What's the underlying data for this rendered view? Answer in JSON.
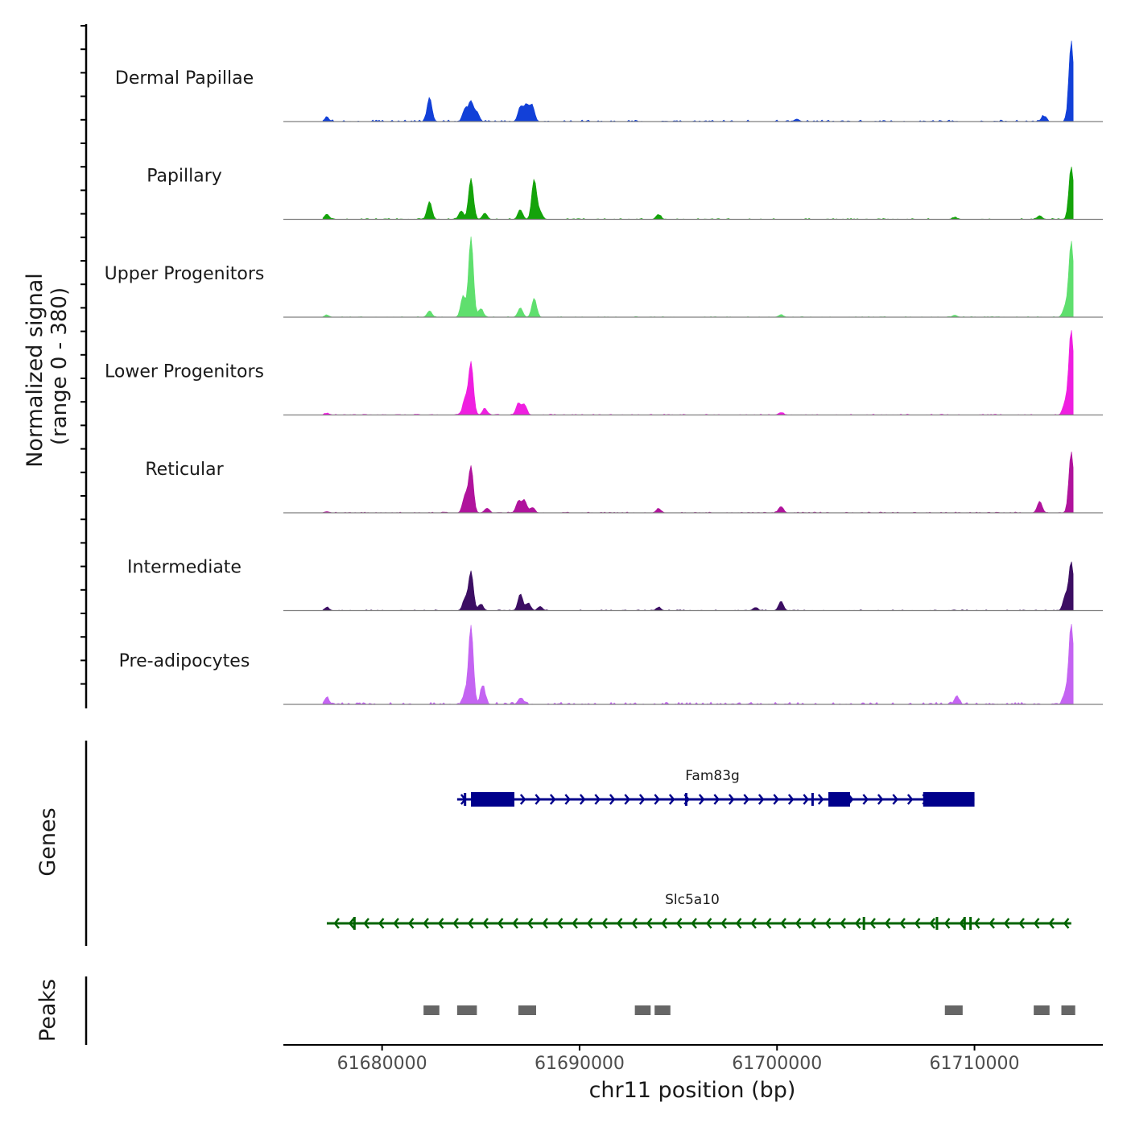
{
  "chart_data": {
    "type": "area",
    "title": "",
    "ylabel_line1": "Normalized signal",
    "ylabel_line2": "(range 0 - 380)",
    "ylim": [
      0,
      380
    ],
    "xlabel": "chr11 position (bp)",
    "xlim": [
      61675000,
      61716500
    ],
    "xticks": [
      61680000,
      61690000,
      61700000,
      61710000
    ],
    "xtick_labels": [
      "61680000",
      "61690000",
      "61700000",
      "61710000"
    ],
    "baseline_color": "#7f7f7f",
    "tracks": [
      {
        "name": "Dermal Papillae",
        "color": "#1240d8",
        "peaks": [
          [
            61677200,
            18
          ],
          [
            61682400,
            115
          ],
          [
            61684200,
            60
          ],
          [
            61684500,
            95
          ],
          [
            61684800,
            45
          ],
          [
            61687000,
            70
          ],
          [
            61687300,
            80
          ],
          [
            61687600,
            75
          ],
          [
            61701000,
            12
          ],
          [
            61713500,
            25
          ],
          [
            61714900,
            380
          ]
        ],
        "noise": 10
      },
      {
        "name": "Papillary",
        "color": "#14a30a",
        "peaks": [
          [
            61677200,
            25
          ],
          [
            61682400,
            85
          ],
          [
            61684000,
            40
          ],
          [
            61684500,
            195
          ],
          [
            61685200,
            30
          ],
          [
            61687000,
            45
          ],
          [
            61687700,
            190
          ],
          [
            61688000,
            35
          ],
          [
            61694000,
            22
          ],
          [
            61709000,
            10
          ],
          [
            61713300,
            18
          ],
          [
            61714900,
            250
          ]
        ],
        "noise": 6
      },
      {
        "name": "Upper Progenitors",
        "color": "#5fdf6e",
        "peaks": [
          [
            61677200,
            10
          ],
          [
            61682400,
            30
          ],
          [
            61684100,
            100
          ],
          [
            61684500,
            380
          ],
          [
            61685000,
            40
          ],
          [
            61687000,
            45
          ],
          [
            61687700,
            90
          ],
          [
            61700200,
            12
          ],
          [
            61709000,
            10
          ],
          [
            61714600,
            50
          ],
          [
            61714900,
            360
          ]
        ],
        "noise": 4
      },
      {
        "name": "Lower Progenitors",
        "color": "#ef1fe0",
        "peaks": [
          [
            61677200,
            8
          ],
          [
            61684200,
            75
          ],
          [
            61684500,
            250
          ],
          [
            61685200,
            30
          ],
          [
            61686900,
            55
          ],
          [
            61687200,
            50
          ],
          [
            61700200,
            12
          ],
          [
            61714600,
            60
          ],
          [
            61714900,
            410
          ]
        ],
        "noise": 5
      },
      {
        "name": "Reticular",
        "color": "#b0139c",
        "peaks": [
          [
            61677200,
            6
          ],
          [
            61684200,
            80
          ],
          [
            61684500,
            220
          ],
          [
            61685300,
            20
          ],
          [
            61686900,
            55
          ],
          [
            61687200,
            60
          ],
          [
            61687600,
            25
          ],
          [
            61694000,
            20
          ],
          [
            61700200,
            30
          ],
          [
            61713300,
            55
          ],
          [
            61714900,
            290
          ]
        ],
        "noise": 5
      },
      {
        "name": "Intermediate",
        "color": "#3c0e63",
        "peaks": [
          [
            61677200,
            15
          ],
          [
            61684200,
            55
          ],
          [
            61684500,
            185
          ],
          [
            61685000,
            30
          ],
          [
            61687000,
            80
          ],
          [
            61687400,
            35
          ],
          [
            61688000,
            20
          ],
          [
            61694000,
            15
          ],
          [
            61698900,
            15
          ],
          [
            61700200,
            45
          ],
          [
            61714600,
            70
          ],
          [
            61714900,
            230
          ]
        ],
        "noise": 5
      },
      {
        "name": "Pre-adipocytes",
        "color": "#c464f2",
        "peaks": [
          [
            61677200,
            30
          ],
          [
            61684200,
            50
          ],
          [
            61684500,
            370
          ],
          [
            61685100,
            90
          ],
          [
            61687000,
            30
          ],
          [
            61709100,
            40
          ],
          [
            61714600,
            55
          ],
          [
            61714900,
            380
          ]
        ],
        "noise": 14
      }
    ],
    "genes_label": "Genes",
    "genes": [
      {
        "name": "Fam83g",
        "strand": "+",
        "start": 61683800,
        "end": 61710000,
        "color": "#00008b",
        "exons": [
          [
            61684500,
            61686700
          ],
          [
            61702600,
            61703700
          ],
          [
            61707400,
            61710000
          ]
        ],
        "marks": [
          61684200,
          61695400,
          61701800
        ]
      },
      {
        "name": "Slc5a10",
        "strand": "-",
        "start": 61677200,
        "end": 61714900,
        "color": "#006400",
        "exons": [],
        "marks": [
          61678600,
          61704400,
          61708100,
          61709500,
          61709800
        ]
      }
    ],
    "peaks_label": "Peaks",
    "peak_regions": [
      [
        61682100,
        61682900
      ],
      [
        61683800,
        61684800
      ],
      [
        61686900,
        61687800
      ],
      [
        61692800,
        61693600
      ],
      [
        61693800,
        61694600
      ],
      [
        61708500,
        61709400
      ],
      [
        61713000,
        61713800
      ],
      [
        61714400,
        61715100
      ]
    ],
    "peak_color": "#666666"
  }
}
